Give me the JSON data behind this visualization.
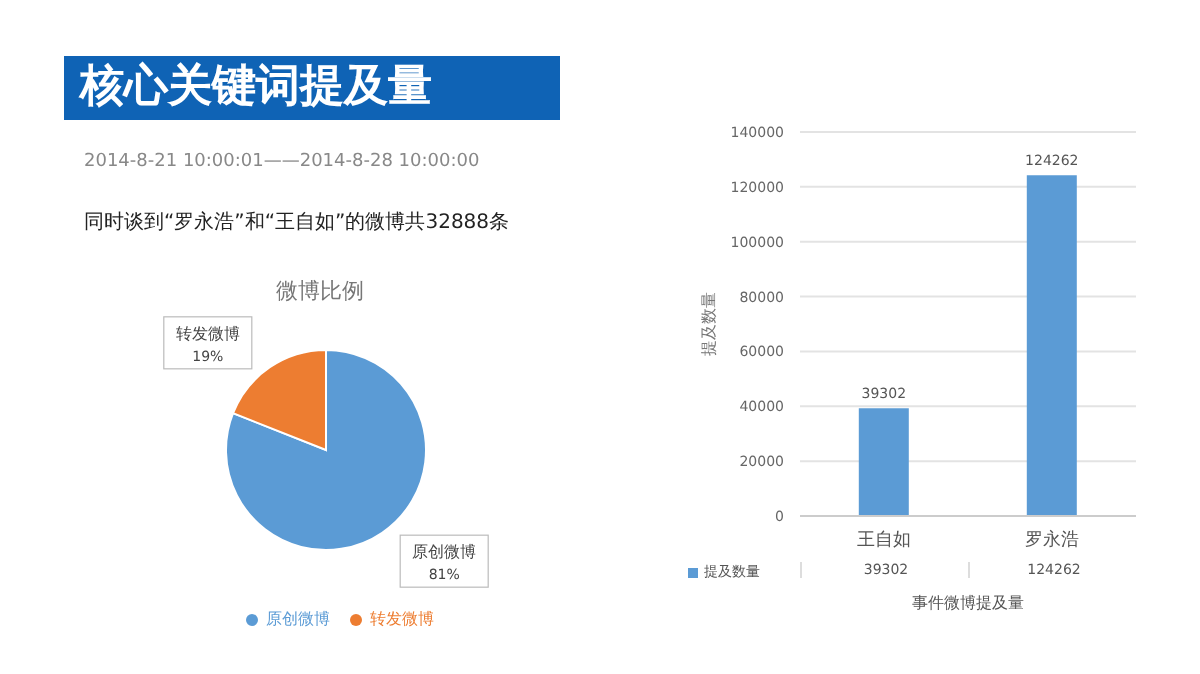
{
  "chart_data": [
    {
      "type": "pie",
      "title": "微博比例",
      "categories": [
        "原创微博",
        "转发微博"
      ],
      "values": [
        81,
        19
      ],
      "colors": [
        "#5b9bd5",
        "#ed7d31"
      ],
      "value_labels": [
        "81%",
        "19%"
      ],
      "legend": "bottom",
      "annotations": [
        "核心关键词提及量",
        "2014-8-21 10:00:01——2014-8-28 10:00:00",
        "同时谈到“罗永浩”和“王自如”的微博共32888条"
      ]
    },
    {
      "type": "bar",
      "xlabel": "事件微博提及量",
      "ylabel": "提及数量",
      "categories": [
        "王自如",
        "罗永浩"
      ],
      "series": [
        {
          "name": "提及数量",
          "color": "#5b9bd5",
          "values": [
            39302,
            124262
          ],
          "value_labels": [
            "39302",
            "124262"
          ]
        }
      ],
      "ylim": [
        0,
        140000
      ],
      "yticks": [
        0,
        20000,
        40000,
        60000,
        80000,
        100000,
        120000,
        140000
      ],
      "grid": "y",
      "legend": "bottom"
    }
  ]
}
